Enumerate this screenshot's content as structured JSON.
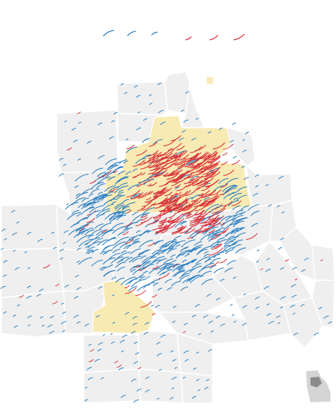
{
  "map": {
    "colors": {
      "background": "#ffffff",
      "county_fill": "#efefef",
      "county_stroke": "#ffffff",
      "highlight_fill": "#f7eab3",
      "shift_dem": "#2a7fc1",
      "shift_rep": "#d9323a",
      "inset_state": "#d4d4d4",
      "inset_region": "#8a8a8a"
    },
    "legend": {
      "ticks": [
        {
          "name": "strong-dem-shift",
          "direction": "dem",
          "strength": 3
        },
        {
          "name": "medium-dem-shift",
          "direction": "dem",
          "strength": 2
        },
        {
          "name": "slight-dem-shift",
          "direction": "dem",
          "strength": 1
        },
        {
          "name": "slight-rep-shift",
          "direction": "rep",
          "strength": 1
        },
        {
          "name": "medium-rep-shift",
          "direction": "rep",
          "strength": 2
        },
        {
          "name": "strong-rep-shift",
          "direction": "rep",
          "strength": 3
        }
      ]
    },
    "highlight_key": {
      "name": "highlighted-county-key"
    },
    "inset": {
      "name": "georgia-locator-inset",
      "state": "Georgia"
    }
  }
}
